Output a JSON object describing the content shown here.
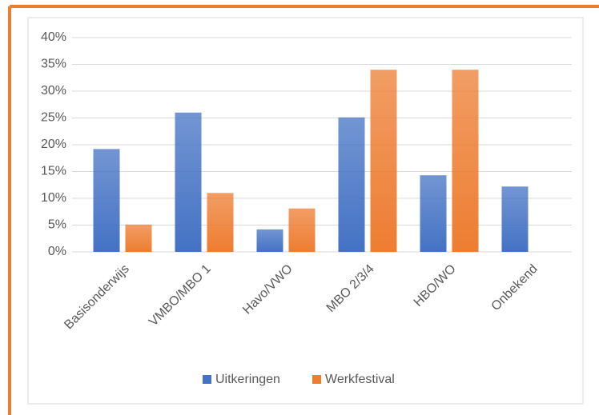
{
  "chart_data": {
    "type": "bar",
    "categories": [
      "Basisonderwijs",
      "VMBO/MBO 1",
      "Havo/VWO",
      "MBO 2/3/4",
      "HBO/WO",
      "Onbekend"
    ],
    "series": [
      {
        "name": "Uitkeringen",
        "color": "#4472c4",
        "values": [
          19.2,
          26,
          4.2,
          25.1,
          14.3,
          12.2
        ]
      },
      {
        "name": "Werkfestival",
        "color": "#ed7d31",
        "values": [
          5.1,
          11,
          8.1,
          34,
          34,
          0
        ]
      }
    ],
    "ylim": [
      0,
      40
    ],
    "yticks": [
      {
        "value": 0,
        "label": "0%"
      },
      {
        "value": 5,
        "label": "5%"
      },
      {
        "value": 10,
        "label": "10%"
      },
      {
        "value": 15,
        "label": "15%"
      },
      {
        "value": 20,
        "label": "20%"
      },
      {
        "value": 25,
        "label": "25%"
      },
      {
        "value": 30,
        "label": "30%"
      },
      {
        "value": 35,
        "label": "35%"
      },
      {
        "value": 40,
        "label": "40%"
      }
    ],
    "grid": true,
    "legend": "bottom"
  }
}
